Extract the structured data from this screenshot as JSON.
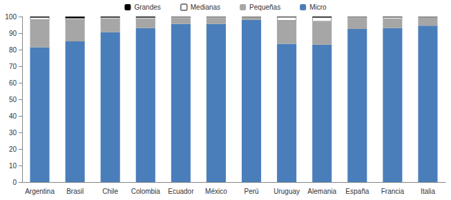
{
  "chart_data": {
    "type": "bar",
    "stacked": true,
    "categories": [
      "Argentina",
      "Brasil",
      "Chile",
      "Colombia",
      "Ecuador",
      "México",
      "Perú",
      "Uruguay",
      "Alemania",
      "España",
      "Francia",
      "Italia"
    ],
    "series": [
      {
        "name": "Grandes",
        "color": "#000000",
        "values": [
          0.5,
          1,
          0.5,
          0.5,
          0.2,
          0.2,
          0.1,
          0.3,
          0.5,
          0.2,
          0.3,
          0.1
        ]
      },
      {
        "name": "Medianas",
        "color": "#ffffff",
        "values": [
          1.5,
          1,
          1,
          1,
          0.8,
          0.8,
          0.4,
          2.2,
          2.5,
          0.8,
          1.2,
          0.4
        ]
      },
      {
        "name": "Pequeñas",
        "color": "#a6a6a6",
        "values": [
          16.5,
          13,
          8,
          5.5,
          3.5,
          3.5,
          1.5,
          14,
          14,
          6.5,
          5.5,
          5
        ]
      },
      {
        "name": "Micro",
        "color": "#4a7ebb",
        "values": [
          81.5,
          85,
          90.5,
          93,
          95.5,
          95.5,
          98,
          83.5,
          83,
          92.5,
          93,
          94.5
        ]
      }
    ],
    "ylim": [
      0,
      100
    ],
    "yticks": [
      0,
      10,
      20,
      30,
      40,
      50,
      60,
      70,
      80,
      90,
      100
    ],
    "grid": false,
    "legend": "top"
  }
}
